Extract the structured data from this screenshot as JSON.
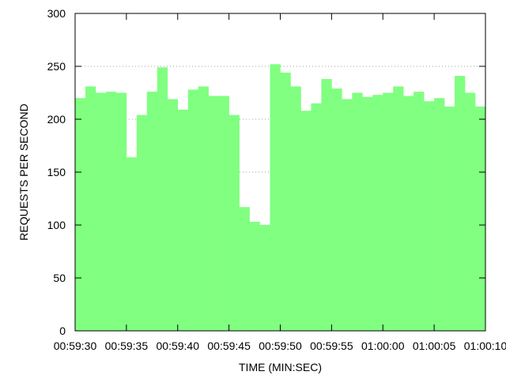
{
  "chart_data": {
    "type": "bar",
    "xlabel": "TIME (MIN:SEC)",
    "ylabel": "REQUESTS PER SECOND",
    "ylim": [
      0,
      300
    ],
    "yticks": [
      0,
      50,
      100,
      150,
      200,
      250,
      300
    ],
    "xlim": [
      "00:59:30",
      "01:00:10"
    ],
    "xticks": [
      "00:59:30",
      "00:59:35",
      "00:59:40",
      "00:59:45",
      "00:59:50",
      "00:59:55",
      "01:00:00",
      "01:00:05",
      "01:00:10"
    ],
    "grid": "horizontal dotted",
    "bar_color": "#80ff80",
    "x": [
      "00:59:30",
      "00:59:31",
      "00:59:32",
      "00:59:33",
      "00:59:34",
      "00:59:35",
      "00:59:36",
      "00:59:37",
      "00:59:38",
      "00:59:39",
      "00:59:40",
      "00:59:41",
      "00:59:42",
      "00:59:43",
      "00:59:44",
      "00:59:45",
      "00:59:46",
      "00:59:47",
      "00:59:48",
      "00:59:49",
      "00:59:50",
      "00:59:51",
      "00:59:52",
      "00:59:53",
      "00:59:54",
      "00:59:55",
      "00:59:56",
      "00:59:57",
      "00:59:58",
      "00:59:59",
      "01:00:00",
      "01:00:01",
      "01:00:02",
      "01:00:03",
      "01:00:04",
      "01:00:05",
      "01:00:06",
      "01:00:07",
      "01:00:08",
      "01:00:09"
    ],
    "values": [
      220,
      231,
      225,
      226,
      225,
      164,
      204,
      226,
      249,
      219,
      209,
      228,
      231,
      222,
      222,
      204,
      117,
      103,
      100,
      252,
      244,
      231,
      208,
      215,
      238,
      229,
      219,
      225,
      221,
      223,
      225,
      231,
      222,
      226,
      217,
      220,
      212,
      241,
      225,
      212
    ]
  }
}
